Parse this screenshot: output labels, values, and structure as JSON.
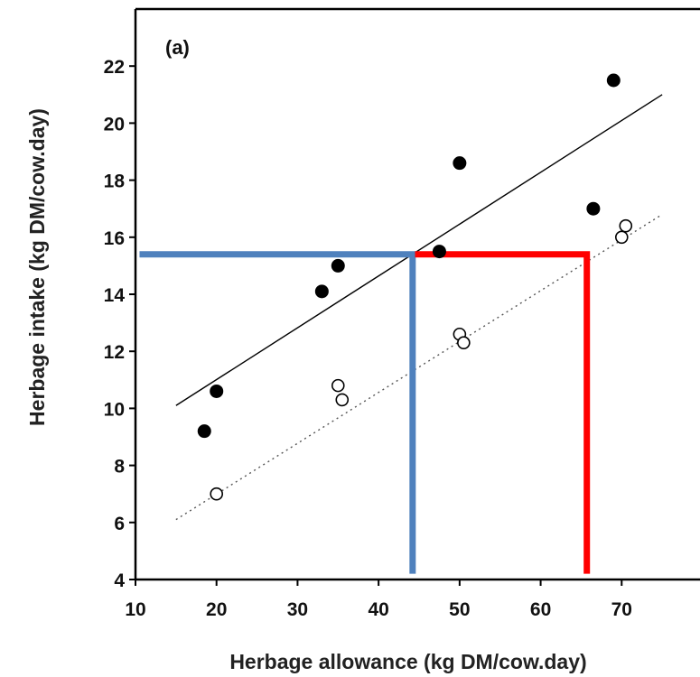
{
  "chart_data": {
    "type": "scatter",
    "panel_label": "(a)",
    "xlabel": "Herbage allowance (kg DM/cow.day)",
    "ylabel": "Herbage intake (kg DM/cow.day)",
    "xlim": [
      10,
      80
    ],
    "ylim": [
      4,
      24
    ],
    "x_ticks": [
      10,
      20,
      30,
      40,
      50,
      60,
      70
    ],
    "y_ticks": [
      4,
      6,
      8,
      10,
      12,
      14,
      16,
      18,
      20,
      22
    ],
    "series": [
      {
        "marker": "filled-circle",
        "color": "#000000",
        "points": [
          {
            "x": 18.5,
            "y": 9.2
          },
          {
            "x": 20,
            "y": 10.6
          },
          {
            "x": 33,
            "y": 14.1
          },
          {
            "x": 35,
            "y": 15.0
          },
          {
            "x": 47.5,
            "y": 15.5
          },
          {
            "x": 50,
            "y": 18.6
          },
          {
            "x": 66.5,
            "y": 17.0
          },
          {
            "x": 69,
            "y": 21.5
          }
        ]
      },
      {
        "marker": "open-circle",
        "color": "#000000",
        "points": [
          {
            "x": 20,
            "y": 7.0
          },
          {
            "x": 35,
            "y": 10.8
          },
          {
            "x": 35.5,
            "y": 10.3
          },
          {
            "x": 50,
            "y": 12.6
          },
          {
            "x": 50.5,
            "y": 12.3
          },
          {
            "x": 70,
            "y": 16.0
          },
          {
            "x": 70.5,
            "y": 16.4
          }
        ]
      }
    ],
    "fit_lines": [
      {
        "style": "solid",
        "color": "#000000",
        "from": {
          "x": 15,
          "y": 10.1
        },
        "to": {
          "x": 75,
          "y": 21.0
        }
      },
      {
        "style": "dotted",
        "color": "#555555",
        "from": {
          "x": 15,
          "y": 6.1
        },
        "to": {
          "x": 75,
          "y": 16.8
        }
      }
    ],
    "reference_lines": [
      {
        "name": "blue-reference",
        "color": "#4f81bd",
        "points": [
          {
            "x": 10.5,
            "y": 15.4
          },
          {
            "x": 44.2,
            "y": 15.4
          },
          {
            "x": 44.2,
            "y": 4.2
          }
        ]
      },
      {
        "name": "red-reference",
        "color": "#ff0000",
        "points": [
          {
            "x": 44.5,
            "y": 15.4
          },
          {
            "x": 65.7,
            "y": 15.4
          },
          {
            "x": 65.7,
            "y": 4.2
          }
        ]
      }
    ]
  }
}
